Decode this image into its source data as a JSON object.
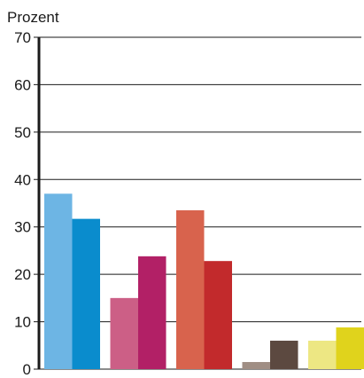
{
  "chart_data": {
    "type": "bar",
    "ylabel": "Prozent",
    "ylim": [
      0,
      70
    ],
    "yticks": [
      0,
      10,
      20,
      30,
      40,
      50,
      60,
      70
    ],
    "grid": true,
    "legend": "none",
    "groups": [
      {
        "values": [
          37,
          31.7
        ],
        "colors": [
          "#6db5e4",
          "#0a8ccd"
        ]
      },
      {
        "values": [
          15,
          23.8
        ],
        "colors": [
          "#cc5f86",
          "#b22066"
        ]
      },
      {
        "values": [
          33.5,
          22.8
        ],
        "colors": [
          "#d8634d",
          "#c22a2c"
        ]
      },
      {
        "values": [
          1.5,
          6
        ],
        "colors": [
          "#a08e84",
          "#5c4940"
        ]
      },
      {
        "values": [
          6,
          8.8
        ],
        "colors": [
          "#ede783",
          "#e0d31c"
        ]
      }
    ]
  }
}
